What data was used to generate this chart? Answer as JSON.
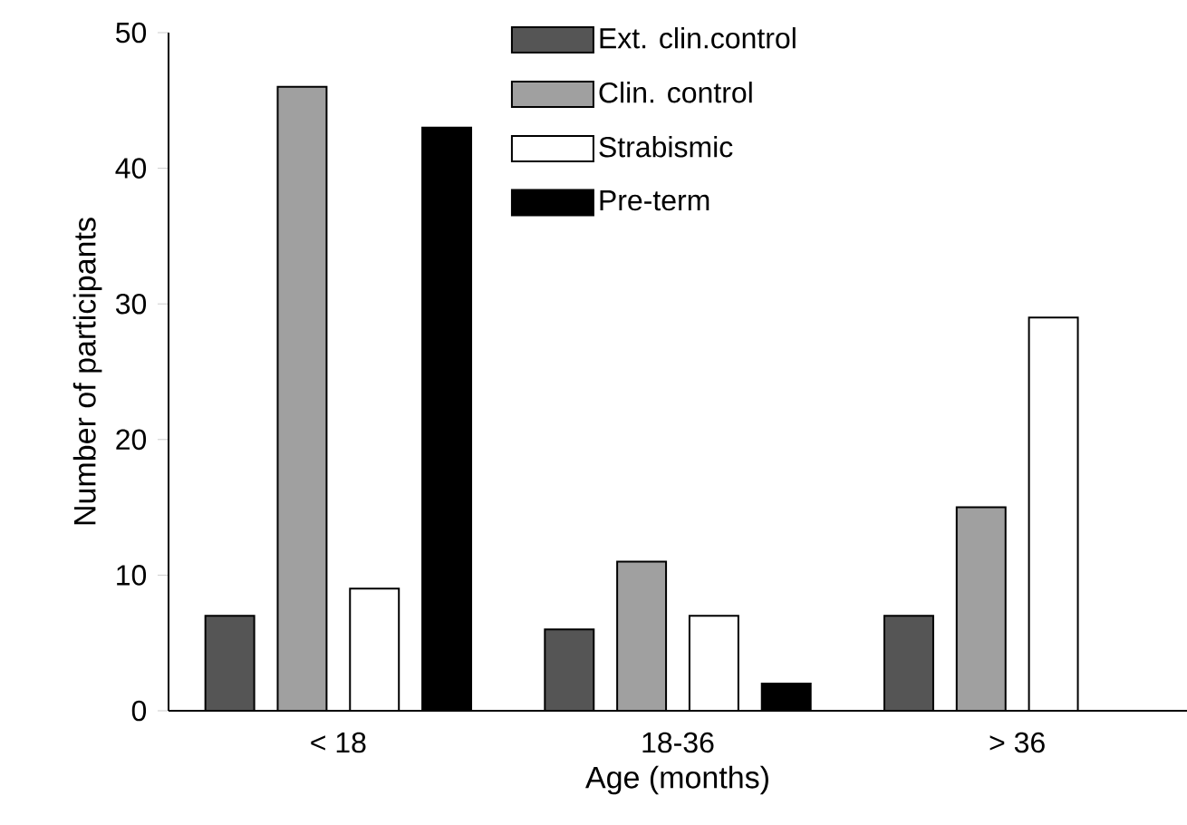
{
  "chart_data": {
    "type": "bar",
    "xlabel": "Age (months)",
    "ylabel": "Number of participants",
    "categories": [
      "< 18",
      "18-36",
      "> 36"
    ],
    "series": [
      {
        "name": "Ext. clin.control",
        "color": "#555555",
        "values": [
          7,
          6,
          7
        ]
      },
      {
        "name": "Clin. control",
        "color": "#a0a0a0",
        "values": [
          46,
          11,
          15
        ]
      },
      {
        "name": "Strabismic",
        "color": "#ffffff",
        "values": [
          9,
          7,
          29
        ]
      },
      {
        "name": "Pre-term",
        "color": "#000000",
        "values": [
          43,
          2,
          0
        ]
      }
    ],
    "ylim": [
      0,
      50
    ],
    "yticks": [
      0,
      10,
      20,
      30,
      40,
      50
    ],
    "legend": "top right"
  }
}
